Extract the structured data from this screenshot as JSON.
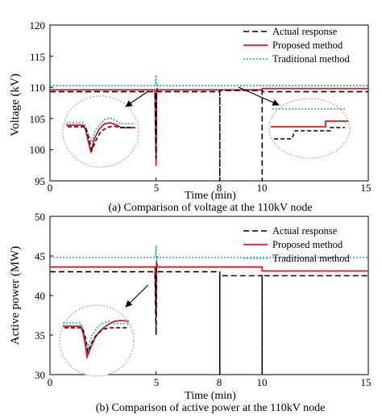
{
  "chart_data": [
    {
      "type": "line",
      "caption": "(a) Comparison of voltage at the 110kV node",
      "xlabel": "Time (min)",
      "ylabel": "Voltage (kV)",
      "xlim": [
        0,
        15
      ],
      "ylim": [
        95,
        120
      ],
      "xticks": [
        "0",
        "5",
        "8",
        "10",
        "15"
      ],
      "yticks": [
        "95",
        "100",
        "105",
        "110",
        "115",
        "120"
      ],
      "legend_position": "top-right",
      "grid": false,
      "series": [
        {
          "name": "Actual response",
          "color": "#000000",
          "style": "dashed",
          "x": [
            0,
            4.95,
            5.0,
            5.02,
            5.05,
            5.08,
            5.12,
            5.2,
            8.0,
            8.0,
            8.0,
            10.0,
            10.0,
            10.0,
            15.0
          ],
          "y": [
            109.3,
            109.3,
            98.6,
            109.0,
            109.5,
            109.3,
            109.3,
            109.3,
            109.3,
            95.0,
            109.5,
            109.5,
            95.0,
            109.3,
            109.3
          ]
        },
        {
          "name": "Proposed method",
          "color": "#e8141c",
          "style": "solid",
          "x": [
            0,
            4.95,
            5.0,
            5.02,
            5.05,
            5.08,
            5.12,
            5.2,
            10.0,
            10.0,
            15.0
          ],
          "y": [
            109.6,
            109.6,
            97.5,
            109.3,
            109.8,
            109.6,
            109.6,
            109.6,
            109.6,
            109.8,
            109.8
          ]
        },
        {
          "name": "Traditional method",
          "color": "#1aa6c8",
          "style": "dotted",
          "x": [
            0,
            4.95,
            5.0,
            5.02,
            5.05,
            5.08,
            5.12,
            5.2,
            15.0
          ],
          "y": [
            110.3,
            110.3,
            112.0,
            109.5,
            110.6,
            110.3,
            110.3,
            110.3,
            110.3
          ]
        }
      ]
    },
    {
      "type": "line",
      "caption": "(b) Comparison of active power at the 110kV node",
      "xlabel": "Time (min)",
      "ylabel": "Active power (MW)",
      "xlim": [
        0,
        15
      ],
      "ylim": [
        30,
        50
      ],
      "xticks": [
        "0",
        "5",
        "8",
        "10",
        "15"
      ],
      "yticks": [
        "30",
        "35",
        "40",
        "45",
        "50"
      ],
      "legend_position": "top-right",
      "grid": false,
      "series": [
        {
          "name": "Actual response",
          "color": "#000000",
          "style": "dashed",
          "x": [
            0,
            4.95,
            5.0,
            5.02,
            5.05,
            5.08,
            5.12,
            5.2,
            8.0,
            8.0,
            8.0,
            10.0,
            10.0,
            10.0,
            15.0
          ],
          "y": [
            43.0,
            43.0,
            35.0,
            43.5,
            43.2,
            43.0,
            43.0,
            43.0,
            43.0,
            30.0,
            42.5,
            42.5,
            30.0,
            42.5,
            42.5
          ]
        },
        {
          "name": "Proposed method",
          "color": "#e8141c",
          "style": "solid",
          "x": [
            0,
            4.95,
            5.0,
            5.02,
            5.05,
            5.08,
            5.12,
            5.2,
            10.0,
            10.0,
            15.0
          ],
          "y": [
            43.6,
            43.6,
            37.2,
            44.2,
            43.9,
            43.6,
            43.6,
            43.6,
            43.6,
            43.1,
            43.1
          ]
        },
        {
          "name": "Traditional method",
          "color": "#1aa6c8",
          "style": "dotted",
          "x": [
            0,
            4.95,
            5.0,
            5.02,
            5.05,
            5.08,
            5.12,
            5.2,
            15.0
          ],
          "y": [
            44.8,
            44.8,
            46.2,
            44.0,
            45.0,
            44.8,
            44.8,
            44.8,
            44.8
          ]
        }
      ]
    }
  ]
}
